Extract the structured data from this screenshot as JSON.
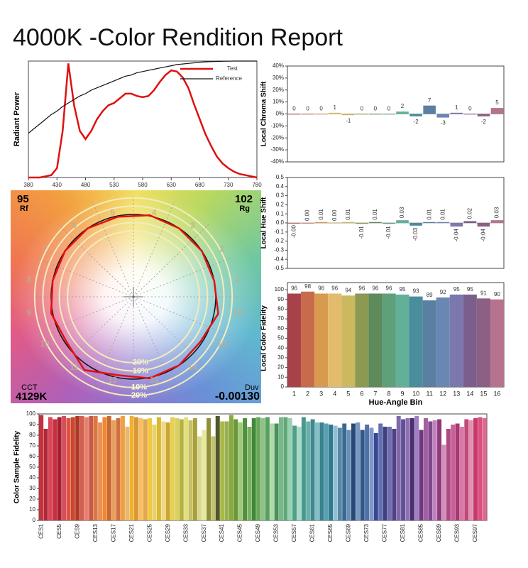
{
  "title": "4000K -Color Rendition Report",
  "chart_data": [
    {
      "type": "line",
      "ylabel": "Radiant Power",
      "legend": "upper right",
      "xlim": [
        380,
        780
      ],
      "ylim": [
        0,
        1
      ],
      "xticks": [
        380,
        430,
        480,
        530,
        580,
        630,
        680,
        730,
        780
      ],
      "x": [
        380,
        390,
        400,
        410,
        420,
        430,
        440,
        450,
        460,
        470,
        480,
        490,
        500,
        510,
        520,
        530,
        540,
        550,
        560,
        570,
        580,
        590,
        600,
        610,
        620,
        630,
        640,
        650,
        660,
        670,
        680,
        690,
        700,
        710,
        720,
        730,
        740,
        750,
        760,
        770,
        780
      ],
      "series": [
        {
          "name": "Test",
          "color": "#e01010",
          "values": [
            0,
            0,
            0,
            0.01,
            0.02,
            0.08,
            0.4,
            0.98,
            0.62,
            0.4,
            0.33,
            0.4,
            0.5,
            0.57,
            0.62,
            0.64,
            0.68,
            0.72,
            0.72,
            0.7,
            0.69,
            0.7,
            0.75,
            0.82,
            0.88,
            0.92,
            0.91,
            0.86,
            0.77,
            0.63,
            0.5,
            0.37,
            0.27,
            0.18,
            0.12,
            0.08,
            0.05,
            0.03,
            0.02,
            0.01,
            0
          ]
        },
        {
          "name": "Reference",
          "color": "#111111",
          "values": [
            0.38,
            0.42,
            0.46,
            0.5,
            0.54,
            0.57,
            0.61,
            0.64,
            0.67,
            0.7,
            0.72,
            0.75,
            0.77,
            0.79,
            0.81,
            0.83,
            0.85,
            0.87,
            0.88,
            0.9,
            0.91,
            0.92,
            0.93,
            0.94,
            0.95,
            0.96,
            0.97,
            0.975,
            0.98,
            0.985,
            0.99,
            0.993,
            0.995,
            0.997,
            0.998,
            0.999,
            1,
            1,
            1,
            1,
            1
          ]
        }
      ]
    },
    {
      "type": "vector",
      "rf": {
        "label": "Rf",
        "value": 95
      },
      "rg": {
        "label": "Rg",
        "value": 102
      },
      "cct": {
        "label": "CCT",
        "value": "4129K"
      },
      "duv": {
        "label": "Duv",
        "value": "-0.00130"
      },
      "categories": [
        "1",
        "2",
        "3",
        "4",
        "5",
        "6",
        "7",
        "8",
        "9",
        "10",
        "11",
        "12",
        "13",
        "14",
        "15",
        "16"
      ],
      "rings": [
        {
          "value": -20,
          "label": "-20%"
        },
        {
          "value": -10,
          "label": "-10%"
        },
        {
          "value": 10,
          "label": "10%"
        },
        {
          "value": 20,
          "label": "20%"
        }
      ],
      "ring_color": "#f3ecbc",
      "test_color": "#e01010",
      "reference_color": "#111111"
    },
    {
      "type": "bar",
      "ylabel": "Local Chroma Shift",
      "ylim": [
        -40,
        40
      ],
      "grid": false,
      "yticks": [
        {
          "value": 40,
          "label": "40%"
        },
        {
          "value": 30,
          "label": "30%"
        },
        {
          "value": 20,
          "label": "20%"
        },
        {
          "value": 10,
          "label": "10%"
        },
        {
          "value": 0,
          "label": "0%"
        },
        {
          "value": -10,
          "label": "-10%"
        },
        {
          "value": -20,
          "label": "-20%"
        },
        {
          "value": -30,
          "label": "-30%"
        },
        {
          "value": -40,
          "label": "-40%"
        }
      ],
      "values": [
        0,
        0,
        0,
        1,
        -1,
        0,
        0,
        0,
        2,
        -2,
        7,
        -3,
        1,
        0,
        -2,
        5
      ],
      "colors": [
        "#a8424a",
        "#c86a4c",
        "#d79a4f",
        "#e3bb6d",
        "#cbb85f",
        "#8b9953",
        "#5f8a5a",
        "#5fa07a",
        "#63b099",
        "#4a8d9c",
        "#5a7fa0",
        "#6a86b2",
        "#7b78ad",
        "#7a5f8d",
        "#8d5f82",
        "#b5738f"
      ]
    },
    {
      "type": "bar",
      "ylabel": "Local Hue Shift",
      "ylim": [
        -0.5,
        0.5
      ],
      "grid": false,
      "yticks": [
        0.5,
        0.4,
        0.3,
        0.2,
        0.1,
        {
          "value": 0,
          "label": "0.0"
        },
        -0.1,
        -0.2,
        -0.3,
        -0.4,
        -0.5
      ],
      "values": [
        0,
        0,
        0.01,
        0,
        0.01,
        -0.01,
        0.01,
        -0.01,
        0.03,
        -0.03,
        0.01,
        0.01,
        -0.04,
        0.02,
        -0.04,
        0.03
      ],
      "value_labels": [
        "-0.00",
        "0.00",
        "0.01",
        "0.00",
        "0.01",
        "-0.01",
        "0.01",
        "-0.01",
        "0.03",
        "-0.03",
        "0.01",
        "0.01",
        "-0.04",
        "0.02",
        "-0.04",
        "0.03"
      ],
      "colors": [
        "#a8424a",
        "#c86a4c",
        "#d79a4f",
        "#e3bb6d",
        "#cbb85f",
        "#8b9953",
        "#5f8a5a",
        "#5fa07a",
        "#63b099",
        "#4a8d9c",
        "#5a7fa0",
        "#6a86b2",
        "#7b78ad",
        "#7a5f8d",
        "#8d5f82",
        "#b5738f"
      ]
    },
    {
      "type": "bar",
      "ylabel": "Local Color Fidelity",
      "xlabel": "Hue-Angle Bin",
      "ylim": [
        0,
        100
      ],
      "grid": false,
      "yticks": [
        0,
        10,
        20,
        30,
        40,
        50,
        60,
        70,
        80,
        90,
        100
      ],
      "categories": [
        "1",
        "2",
        "3",
        "4",
        "5",
        "6",
        "7",
        "8",
        "9",
        "10",
        "11",
        "12",
        "13",
        "14",
        "15",
        "16"
      ],
      "values": [
        96,
        98,
        96,
        96,
        94,
        96,
        96,
        96,
        95,
        93,
        89,
        92,
        95,
        95,
        91,
        90
      ],
      "colors": [
        "#a8424a",
        "#c86a4c",
        "#d79a4f",
        "#e3bb6d",
        "#cbb85f",
        "#8b9953",
        "#5f8a5a",
        "#5fa07a",
        "#63b099",
        "#4a8d9c",
        "#5a7fa0",
        "#6a86b2",
        "#7b78ad",
        "#7a5f8d",
        "#8d5f82",
        "#b5738f"
      ]
    },
    {
      "type": "bar",
      "ylabel": "Color Sample Fidelity",
      "ylim": [
        0,
        100
      ],
      "grid": false,
      "yticks": [
        0,
        10,
        20,
        30,
        40,
        50,
        60,
        70,
        80,
        90,
        100
      ],
      "categories": [
        "CES1",
        null,
        null,
        null,
        "CES5",
        null,
        null,
        null,
        "CES9",
        null,
        null,
        null,
        "CES13",
        null,
        null,
        null,
        "CES17",
        null,
        null,
        null,
        "CES21",
        null,
        null,
        null,
        "CES25",
        null,
        null,
        null,
        "CES29",
        null,
        null,
        null,
        "CES33",
        null,
        null,
        null,
        "CES37",
        null,
        null,
        null,
        "CES41",
        null,
        null,
        null,
        "CES45",
        null,
        null,
        null,
        "CES49",
        null,
        null,
        null,
        "CES53",
        null,
        null,
        null,
        "CES57",
        null,
        null,
        null,
        "CES61",
        null,
        null,
        null,
        "CES65",
        null,
        null,
        null,
        "CES69",
        null,
        null,
        null,
        "CES73",
        null,
        null,
        null,
        "CES77",
        null,
        null,
        null,
        "CES81",
        null,
        null,
        null,
        "CES85",
        null,
        null,
        null,
        "CES89",
        null,
        null,
        null,
        "CES93",
        null,
        null,
        null,
        "CES97",
        null,
        null
      ],
      "values": [
        99,
        86,
        97,
        95,
        97,
        98,
        96,
        97,
        98,
        98,
        97,
        98,
        98,
        92,
        97,
        98,
        94,
        96,
        98,
        88,
        98,
        97,
        96,
        95,
        96,
        90,
        97,
        93,
        92,
        97,
        96,
        95,
        97,
        94,
        96,
        79,
        85,
        96,
        79,
        98,
        93,
        93,
        99,
        95,
        92,
        96,
        88,
        96,
        97,
        96,
        97,
        91,
        91,
        97,
        97,
        96,
        89,
        88,
        97,
        93,
        95,
        92,
        92,
        91,
        90,
        89,
        87,
        91,
        85,
        91,
        92,
        85,
        90,
        87,
        82,
        91,
        88,
        88,
        86,
        98,
        95,
        96,
        96,
        98,
        85,
        96,
        93,
        94,
        95,
        71,
        86,
        90,
        91,
        88,
        95,
        94,
        96,
        97,
        96
      ],
      "colors": [
        "#c8303c",
        "#b02838",
        "#d84858",
        "#c83040",
        "#a82030",
        "#d05060",
        "#e05040",
        "#c84830",
        "#b03828",
        "#d06050",
        "#e88070",
        "#c85848",
        "#d87840",
        "#e8905a",
        "#f08830",
        "#c86830",
        "#e8a060",
        "#d07040",
        "#f0a040",
        "#e8b870",
        "#f0b030",
        "#d89838",
        "#f8c060",
        "#e0a850",
        "#f0c840",
        "#e8d070",
        "#d8b830",
        "#f0d888",
        "#c8a830",
        "#e8d058",
        "#d8d060",
        "#b8b040",
        "#e0e080",
        "#c8c068",
        "#a8a038",
        "#d8d890",
        "#e8e8a0",
        "#909038",
        "#c0c070",
        "#505828",
        "#a8b848",
        "#98b050",
        "#88a840",
        "#6a9838",
        "#a0c878",
        "#509040",
        "#78b060",
        "#408838",
        "#68a858",
        "#90c088",
        "#58a060",
        "#b0d8a8",
        "#48905a",
        "#78b888",
        "#60a878",
        "#98d0b0",
        "#50a088",
        "#a8d8c8",
        "#48988c",
        "#68b0a8",
        "#408890",
        "#80c0c8",
        "#3a8090",
        "#58a0b0",
        "#307890",
        "#90c0d0",
        "#5888a8",
        "#3a6890",
        "#6890b8",
        "#284878",
        "#7898c0",
        "#305888",
        "#5070a8",
        "#8098c8",
        "#384890",
        "#6070b0",
        "#404080",
        "#7070b0",
        "#504088",
        "#8068a8",
        "#605098",
        "#9070b0",
        "#483070",
        "#a080c0",
        "#703880",
        "#a060a0",
        "#804890",
        "#c080c0",
        "#903878",
        "#d090b8",
        "#b04888",
        "#c86098",
        "#a83870",
        "#d878a8",
        "#c04878",
        "#e090b0",
        "#c83868",
        "#d85080",
        "#e06890"
      ]
    }
  ]
}
